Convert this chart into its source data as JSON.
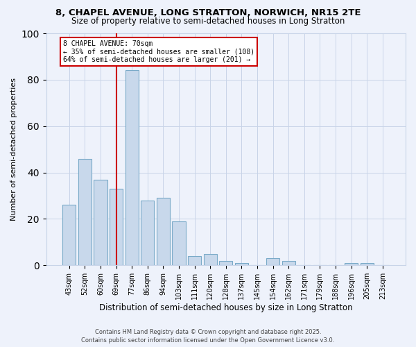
{
  "title1": "8, CHAPEL AVENUE, LONG STRATTON, NORWICH, NR15 2TE",
  "title2": "Size of property relative to semi-detached houses in Long Stratton",
  "xlabel": "Distribution of semi-detached houses by size in Long Stratton",
  "ylabel": "Number of semi-detached properties",
  "categories": [
    "43sqm",
    "52sqm",
    "60sqm",
    "69sqm",
    "77sqm",
    "86sqm",
    "94sqm",
    "103sqm",
    "111sqm",
    "120sqm",
    "128sqm",
    "137sqm",
    "145sqm",
    "154sqm",
    "162sqm",
    "171sqm",
    "179sqm",
    "188sqm",
    "196sqm",
    "205sqm",
    "213sqm"
  ],
  "values": [
    26,
    46,
    37,
    33,
    84,
    28,
    29,
    19,
    4,
    5,
    2,
    1,
    0,
    3,
    2,
    0,
    0,
    0,
    1,
    1,
    0
  ],
  "bar_color": "#c8d8eb",
  "bar_edge_color": "#7aaac8",
  "vline_index": 3,
  "vline_color": "#cc0000",
  "annotation_title": "8 CHAPEL AVENUE: 70sqm",
  "annotation_line1": "← 35% of semi-detached houses are smaller (108)",
  "annotation_line2": "64% of semi-detached houses are larger (201) →",
  "annotation_box_color": "#ffffff",
  "annotation_box_edge": "#cc0000",
  "ylim": [
    0,
    100
  ],
  "yticks": [
    0,
    20,
    40,
    60,
    80,
    100
  ],
  "bg_color": "#eef2fb",
  "grid_color": "#c8d4e8",
  "footer1": "Contains HM Land Registry data © Crown copyright and database right 2025.",
  "footer2": "Contains public sector information licensed under the Open Government Licence v3.0."
}
